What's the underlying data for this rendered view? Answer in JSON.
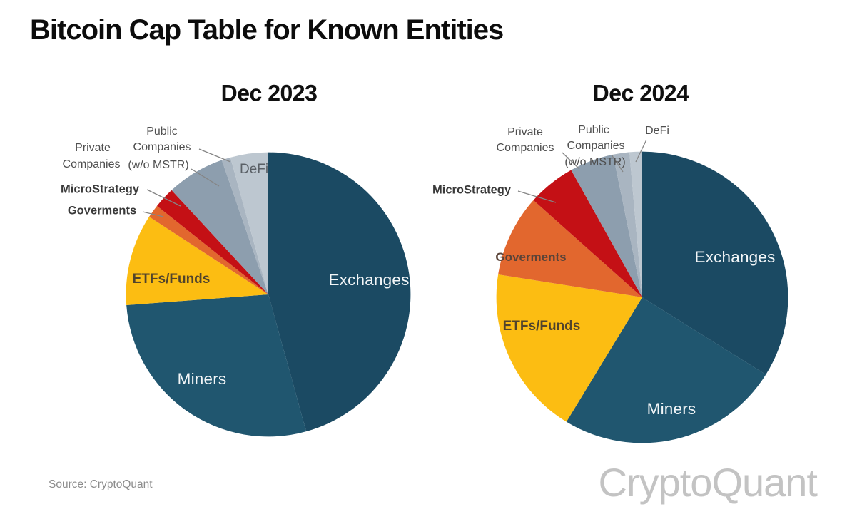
{
  "page": {
    "title": "Bitcoin Cap Table for Known Entities",
    "source_note": "Source: CryptoQuant",
    "watermark": "CryptoQuant"
  },
  "chart_data": [
    {
      "type": "pie",
      "title": "Dec 2023",
      "direction": "clockwise",
      "start_angle_deg": 0,
      "legend_position": "callout-labels",
      "slices": [
        {
          "label": "Exchanges",
          "value_pct": 45.7,
          "color": "#1b4a63"
        },
        {
          "label": "Miners",
          "value_pct": 28.1,
          "color": "#20566f"
        },
        {
          "label": "ETFs/Funds",
          "value_pct": 10.4,
          "color": "#fcbd12"
        },
        {
          "label": "Goverments",
          "value_pct": 1.5,
          "color": "#e2672e"
        },
        {
          "label": "MicroStrategy",
          "value_pct": 2.4,
          "color": "#c41015"
        },
        {
          "label": "Private Companies",
          "value_pct": 6.6,
          "color": "#8d9eae"
        },
        {
          "label": "Public Companies (w/o MSTR)",
          "value_pct": 1.0,
          "color": "#a9b5c1"
        },
        {
          "label": "DeFi",
          "value_pct": 4.3,
          "color": "#bdc7d0"
        }
      ],
      "annotation_words": {
        "public": "Public",
        "private": "Private",
        "companies": "Companies",
        "wo_mstr": "(w/o MSTR)",
        "microstrategy": "MicroStrategy",
        "goverments": "Goverments",
        "defi": "DeFi"
      }
    },
    {
      "type": "pie",
      "title": "Dec 2024",
      "direction": "clockwise",
      "start_angle_deg": 0,
      "legend_position": "callout-labels",
      "slices": [
        {
          "label": "Exchanges",
          "value_pct": 33.9,
          "color": "#1b4a63"
        },
        {
          "label": "Miners",
          "value_pct": 24.8,
          "color": "#20566f"
        },
        {
          "label": "ETFs/Funds",
          "value_pct": 18.8,
          "color": "#fcbd12"
        },
        {
          "label": "Goverments",
          "value_pct": 9.1,
          "color": "#e2672e"
        },
        {
          "label": "MicroStrategy",
          "value_pct": 5.3,
          "color": "#c41015"
        },
        {
          "label": "Private Companies",
          "value_pct": 4.9,
          "color": "#8d9eae"
        },
        {
          "label": "Public Companies (w/o MSTR)",
          "value_pct": 1.8,
          "color": "#a9b5c1"
        },
        {
          "label": "DeFi",
          "value_pct": 1.4,
          "color": "#bdc7d0"
        }
      ],
      "annotation_words": {
        "public": "Public",
        "private": "Private",
        "companies": "Companies",
        "wo_mstr": "(w/o MSTR)",
        "microstrategy": "MicroStrategy",
        "goverments": "Goverments",
        "defi": "DeFi"
      }
    }
  ]
}
